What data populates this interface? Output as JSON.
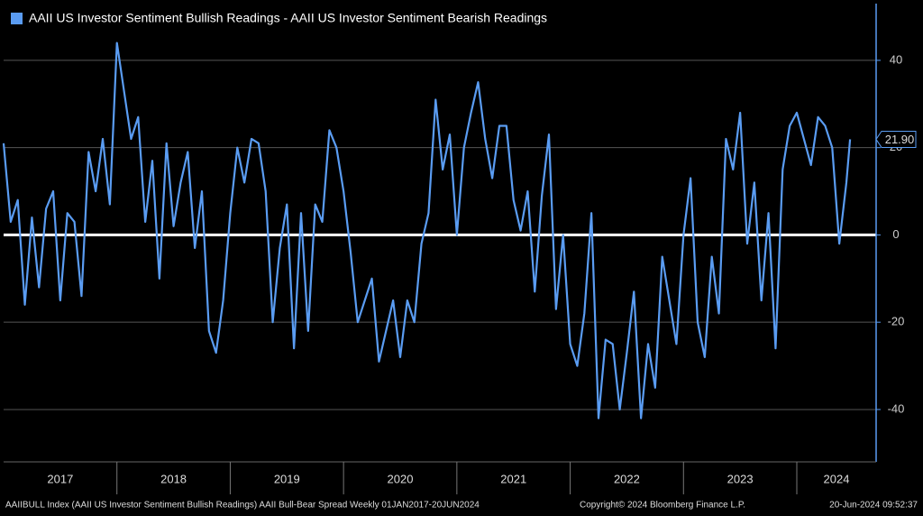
{
  "chart_data": {
    "type": "line",
    "series": [
      {
        "name": "AAII US Investor Sentiment Bullish Readings - AAII US Investor Sentiment Bearish Readings",
        "color": "#5a9cf2",
        "values": [
          21,
          3,
          8,
          -16,
          4,
          -12,
          6,
          10,
          -15,
          5,
          3,
          -14,
          19,
          10,
          22,
          7,
          44,
          33,
          22,
          27,
          3,
          17,
          -10,
          21,
          2,
          12,
          19,
          -3,
          10,
          -22,
          -27,
          -15,
          5,
          20,
          12,
          22,
          21,
          10,
          -20,
          -3,
          7,
          -26,
          5,
          -22,
          7,
          3,
          24,
          20,
          10,
          -4,
          -20,
          -15,
          -10,
          -29,
          -22,
          -15,
          -28,
          -15,
          -20,
          -2,
          5,
          31,
          15,
          23,
          0,
          20,
          28,
          35,
          22,
          13,
          25,
          25,
          8,
          1,
          10,
          -13,
          9,
          23,
          -17,
          0,
          -25,
          -30,
          -18,
          5,
          -42,
          -24,
          -25,
          -40,
          -27,
          -13,
          -42,
          -25,
          -35,
          -5,
          -15,
          -25,
          0,
          13,
          -20,
          -28,
          -5,
          -18,
          22,
          15,
          28,
          -2,
          12,
          -15,
          5,
          -26,
          15,
          25,
          28,
          22,
          16,
          27,
          25,
          20,
          -2,
          12,
          21.9
        ]
      }
    ],
    "x": [
      2017,
      2017.0625,
      2017.125,
      2017.1875,
      2017.25,
      2017.3125,
      2017.375,
      2017.4375,
      2017.5,
      2017.5625,
      2017.625,
      2017.6875,
      2017.75,
      2017.8125,
      2017.875,
      2017.9375,
      2018,
      2018.0625,
      2018.125,
      2018.1875,
      2018.25,
      2018.3125,
      2018.375,
      2018.4375,
      2018.5,
      2018.5625,
      2018.625,
      2018.6875,
      2018.75,
      2018.8125,
      2018.875,
      2018.9375,
      2019,
      2019.0625,
      2019.125,
      2019.1875,
      2019.25,
      2019.3125,
      2019.375,
      2019.4375,
      2019.5,
      2019.5625,
      2019.625,
      2019.6875,
      2019.75,
      2019.8125,
      2019.875,
      2019.9375,
      2020,
      2020.0625,
      2020.125,
      2020.1875,
      2020.25,
      2020.3125,
      2020.375,
      2020.4375,
      2020.5,
      2020.5625,
      2020.625,
      2020.6875,
      2020.75,
      2020.8125,
      2020.875,
      2020.9375,
      2021,
      2021.0625,
      2021.125,
      2021.1875,
      2021.25,
      2021.3125,
      2021.375,
      2021.4375,
      2021.5,
      2021.5625,
      2021.625,
      2021.6875,
      2021.75,
      2021.8125,
      2021.875,
      2021.9375,
      2022,
      2022.0625,
      2022.125,
      2022.1875,
      2022.25,
      2022.3125,
      2022.375,
      2022.4375,
      2022.5,
      2022.5625,
      2022.625,
      2022.6875,
      2022.75,
      2022.8125,
      2022.875,
      2022.9375,
      2023,
      2023.0625,
      2023.125,
      2023.1875,
      2023.25,
      2023.3125,
      2023.375,
      2023.4375,
      2023.5,
      2023.5625,
      2023.625,
      2023.6875,
      2023.75,
      2023.8125,
      2023.875,
      2023.9375,
      2024,
      2024.0625,
      2024.125,
      2024.1875,
      2024.25,
      2024.3125,
      2024.375,
      2024.4375,
      2024.47
    ],
    "xlim": [
      2017,
      2024.7
    ],
    "xticks": [
      {
        "value": 2017,
        "label": "2017"
      },
      {
        "value": 2018,
        "label": "2018"
      },
      {
        "value": 2019,
        "label": "2019"
      },
      {
        "value": 2020,
        "label": "2020"
      },
      {
        "value": 2021,
        "label": "2021"
      },
      {
        "value": 2022,
        "label": "2022"
      },
      {
        "value": 2023,
        "label": "2023"
      },
      {
        "value": 2024,
        "label": "2024"
      }
    ],
    "ylim": [
      -52,
      53
    ],
    "yticks": [
      -40,
      -20,
      0,
      20,
      40
    ],
    "grid": true,
    "last_value_label": "21.90",
    "footer_left": "AAIIBULL Index (AAII US Investor Sentiment Bullish Readings) AAII Bull-Bear Spread  Weekly 01JAN2017-20JUN2024",
    "footer_center": "Copyright© 2024 Bloomberg Finance L.P.",
    "footer_right": "20-Jun-2024 09:52:37"
  }
}
